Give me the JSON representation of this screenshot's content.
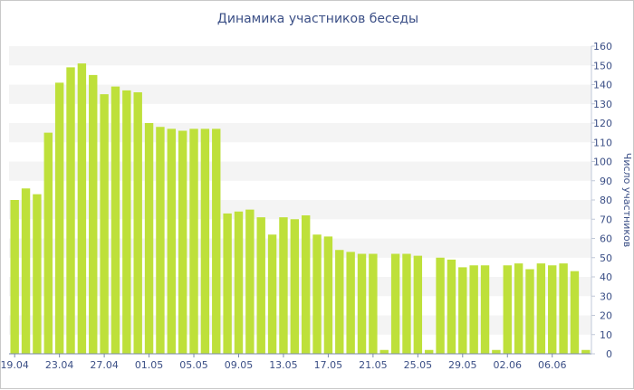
{
  "chart_data": {
    "type": "bar",
    "title": "Динамика участников беседы",
    "xlabel": "",
    "ylabel": "Число участников",
    "ylim": [
      0,
      160
    ],
    "yticks": [
      0,
      10,
      20,
      30,
      40,
      50,
      60,
      70,
      80,
      90,
      100,
      110,
      120,
      130,
      140,
      150,
      160
    ],
    "y_axis_side": "right",
    "bar_color": "#bee03a",
    "band_color": "#f4f4f4",
    "categories": [
      "19.04",
      "20.04",
      "21.04",
      "22.04",
      "23.04",
      "24.04",
      "25.04",
      "26.04",
      "27.04",
      "28.04",
      "29.04",
      "30.04",
      "01.05",
      "02.05",
      "03.05",
      "04.05",
      "05.05",
      "06.05",
      "07.05",
      "08.05",
      "09.05",
      "10.05",
      "11.05",
      "12.05",
      "13.05",
      "14.05",
      "15.05",
      "16.05",
      "17.05",
      "18.05",
      "19.05",
      "20.05",
      "21.05",
      "22.05",
      "23.05",
      "24.05",
      "25.05",
      "26.05",
      "27.05",
      "28.05",
      "29.05",
      "30.05",
      "31.05",
      "01.06",
      "02.06",
      "03.06",
      "04.06",
      "05.06",
      "06.06",
      "07.06",
      "08.06",
      "09.06"
    ],
    "values": [
      80,
      86,
      83,
      115,
      141,
      149,
      151,
      145,
      135,
      139,
      137,
      136,
      120,
      118,
      117,
      116,
      117,
      117,
      117,
      73,
      74,
      75,
      71,
      62,
      71,
      70,
      72,
      62,
      61,
      54,
      53,
      52,
      52,
      2,
      52,
      52,
      51,
      2,
      50,
      49,
      45,
      46,
      46,
      2,
      46,
      47,
      44,
      47,
      46,
      47,
      43,
      2
    ],
    "xtick_labels": [
      "19.04",
      "23.04",
      "27.04",
      "01.05",
      "05.05",
      "09.05",
      "13.05",
      "17.05",
      "21.05",
      "25.05",
      "29.05",
      "02.06",
      "06.06"
    ]
  }
}
